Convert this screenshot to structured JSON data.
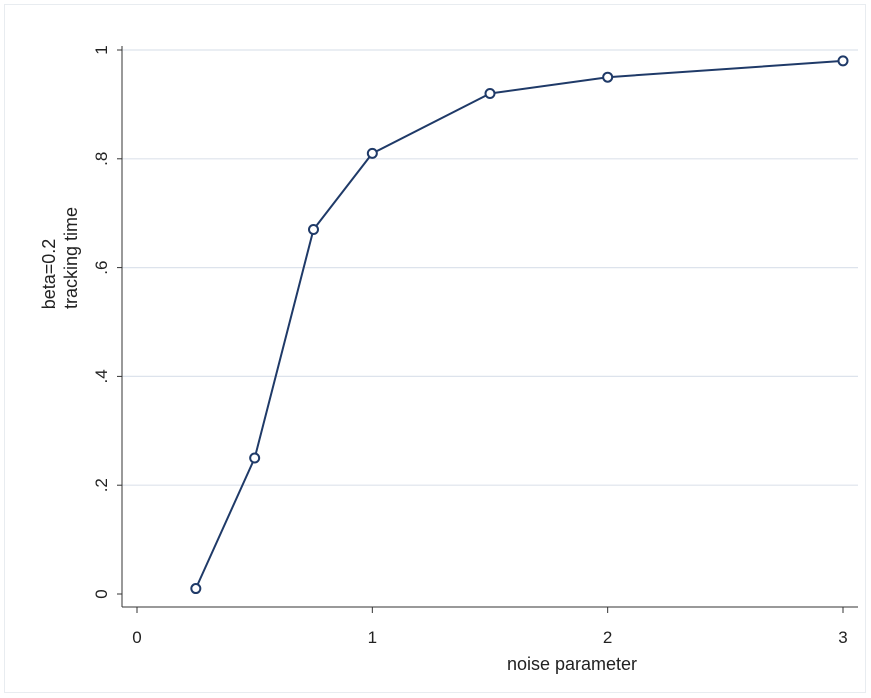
{
  "chart_data": {
    "type": "line",
    "title": "",
    "xlabel": "noise parameter",
    "ylabel_lines": [
      "beta=0.2",
      "tracking time"
    ],
    "xlim": [
      0,
      3
    ],
    "ylim": [
      0,
      1
    ],
    "x_ticks": [
      0,
      1,
      2,
      3
    ],
    "x_tick_labels": [
      "0",
      "1",
      "2",
      "3"
    ],
    "y_ticks": [
      0,
      0.2,
      0.4,
      0.6,
      0.8,
      1
    ],
    "y_tick_labels": [
      "0",
      ".2",
      ".4",
      ".6",
      ".8",
      "1"
    ],
    "grid": true,
    "series": [
      {
        "x": [
          0.25,
          0.5,
          0.75,
          1,
          1.5,
          2,
          3
        ],
        "y": [
          0.01,
          0.25,
          0.67,
          0.81,
          0.92,
          0.95,
          0.98
        ]
      }
    ],
    "colors": {
      "line": "#1f3a68",
      "marker_fill": "#ffffff",
      "grid": "#dde3ec",
      "axis": "#333333"
    }
  }
}
